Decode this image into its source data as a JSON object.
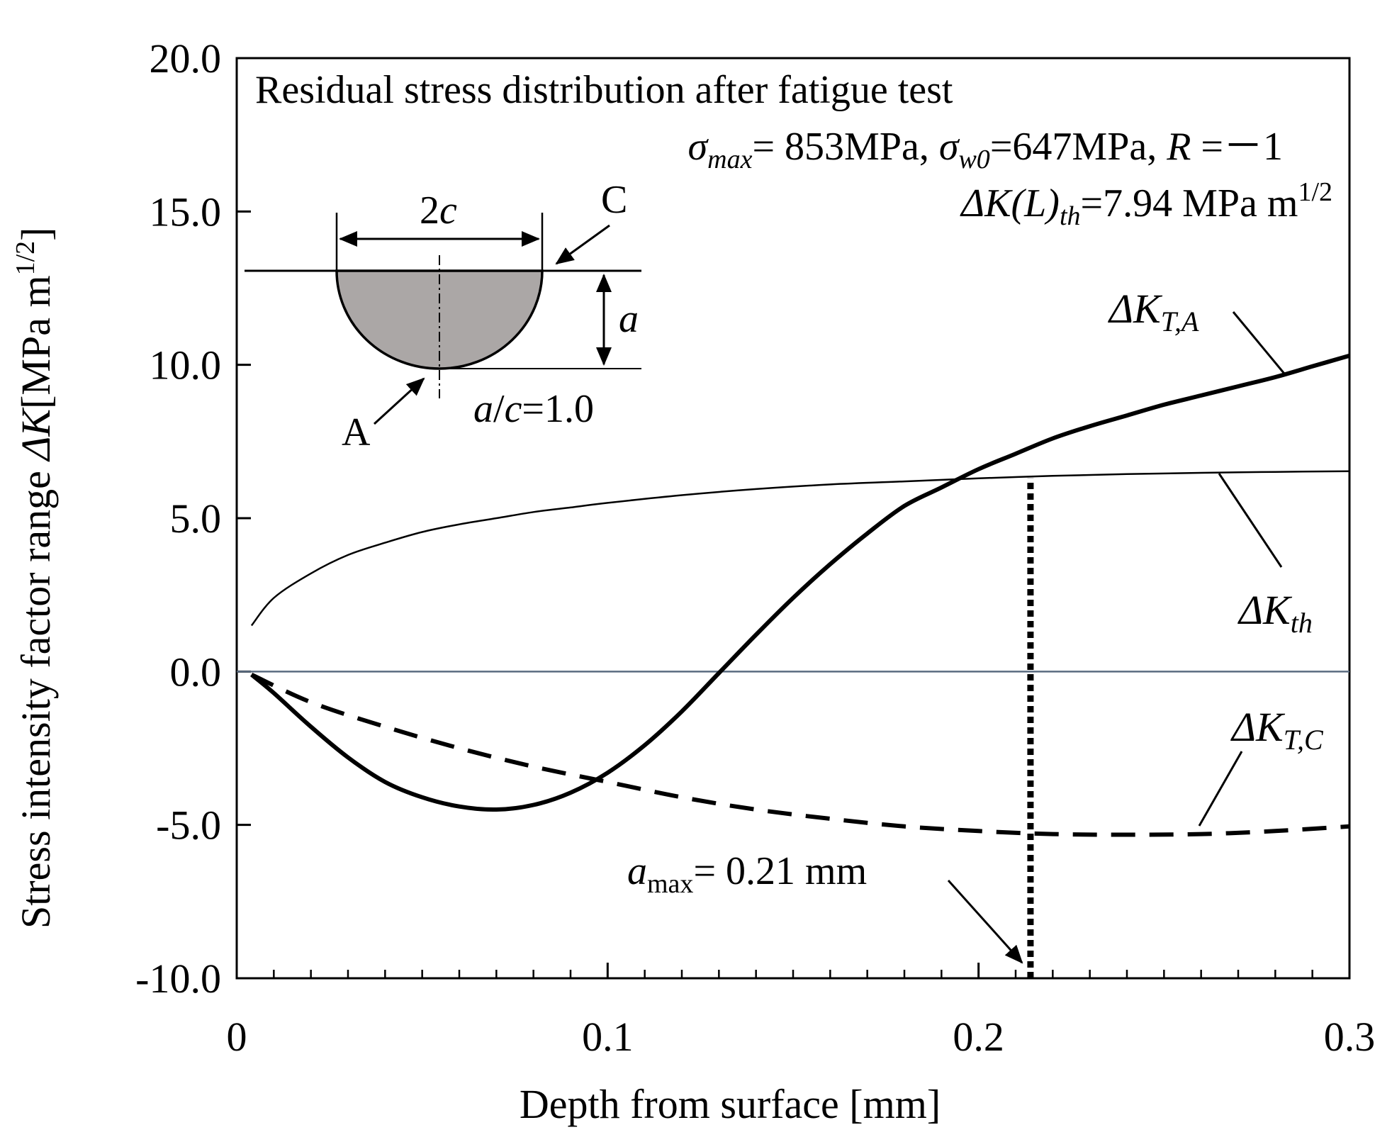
{
  "chart_data": {
    "type": "line",
    "title": "Residual stress distribution after fatigue test",
    "xlabel": "Depth from surface [mm]",
    "ylabel": "Stress intensity factor range ΔK[MPa m^1/2]",
    "ylabel_main": "Stress intensity factor range ",
    "ylabel_sym": "ΔK",
    "ylabel_unit": "[MPa m",
    "ylabel_sup": "1/2",
    "ylabel_close": "]",
    "xlim": [
      0,
      0.3
    ],
    "ylim": [
      -10,
      20
    ],
    "x_ticks": [
      0,
      0.1,
      0.2,
      0.3
    ],
    "x_tick_labels": [
      "0",
      "0.1",
      "0.2",
      "0.3"
    ],
    "y_ticks": [
      -10,
      -5,
      0,
      5,
      10,
      15,
      20
    ],
    "y_tick_labels": [
      "-10.0",
      "-5.0",
      "0.0",
      "5.0",
      "10.0",
      "15.0",
      "20.0"
    ],
    "x_minor_step": 0.01,
    "series": [
      {
        "name": "ΔK_T,A",
        "label_main": "ΔK",
        "label_sub": "T,A",
        "style": "solid-thick",
        "x": [
          0.004,
          0.01,
          0.02,
          0.03,
          0.04,
          0.05,
          0.06,
          0.07,
          0.08,
          0.09,
          0.1,
          0.11,
          0.12,
          0.13,
          0.14,
          0.15,
          0.16,
          0.17,
          0.18,
          0.19,
          0.2,
          0.21,
          0.22,
          0.23,
          0.24,
          0.25,
          0.26,
          0.27,
          0.28,
          0.29,
          0.3
        ],
        "y": [
          -0.1,
          -0.7,
          -1.8,
          -2.8,
          -3.6,
          -4.1,
          -4.4,
          -4.5,
          -4.35,
          -3.95,
          -3.3,
          -2.4,
          -1.3,
          -0.05,
          1.2,
          2.4,
          3.5,
          4.5,
          5.4,
          6.0,
          6.6,
          7.1,
          7.6,
          8.0,
          8.35,
          8.7,
          9.0,
          9.3,
          9.6,
          9.95,
          10.3
        ]
      },
      {
        "name": "ΔK_th",
        "label_main": "ΔK",
        "label_sub": "th",
        "style": "solid-thin",
        "x": [
          0.004,
          0.01,
          0.02,
          0.03,
          0.04,
          0.05,
          0.06,
          0.07,
          0.08,
          0.09,
          0.1,
          0.12,
          0.14,
          0.16,
          0.18,
          0.2,
          0.22,
          0.24,
          0.26,
          0.28,
          0.3
        ],
        "y": [
          1.5,
          2.4,
          3.2,
          3.8,
          4.2,
          4.55,
          4.8,
          5.0,
          5.2,
          5.35,
          5.5,
          5.75,
          5.95,
          6.1,
          6.2,
          6.3,
          6.38,
          6.44,
          6.48,
          6.51,
          6.53
        ]
      },
      {
        "name": "ΔK_T,C",
        "label_main": "ΔK",
        "label_sub": "T,C",
        "style": "dashed-thick",
        "x": [
          0.004,
          0.02,
          0.04,
          0.06,
          0.08,
          0.1,
          0.12,
          0.14,
          0.16,
          0.18,
          0.2,
          0.22,
          0.24,
          0.26,
          0.28,
          0.3
        ],
        "y": [
          -0.1,
          -1.0,
          -1.8,
          -2.5,
          -3.1,
          -3.6,
          -4.1,
          -4.5,
          -4.8,
          -5.05,
          -5.2,
          -5.3,
          -5.32,
          -5.3,
          -5.2,
          -5.05
        ]
      }
    ],
    "zero_line": 0,
    "threshold_marker": {
      "x": 0.214,
      "y_from": -10,
      "y_to": 6.3
    },
    "annotations": {
      "sigma_max_sym": "σ",
      "sigma_max_sub": "max",
      "sigma_max_val": "= 853MPa, ",
      "sigma_w0_sym": "σ",
      "sigma_w0_sub": "w0",
      "sigma_w0_val": "=647MPa, ",
      "R_sym": "R",
      "R_val": " =－1",
      "dkl_sym": "ΔK",
      "dkl_paren": "(L)",
      "dkl_sub": "th",
      "dkl_val": "=7.94 MPa m",
      "dkl_sup": "1/2",
      "amax_sym": "a",
      "amax_sub": "max",
      "amax_val": "= 0.21 mm",
      "inset_2c_num": "2",
      "inset_2c_sym": "c",
      "inset_a": "a",
      "inset_ac_a": "a",
      "inset_ac_slash": "/",
      "inset_ac_c": "c",
      "inset_ac_val": "=1.0",
      "inset_point_A": "A",
      "inset_point_C": "C"
    }
  }
}
